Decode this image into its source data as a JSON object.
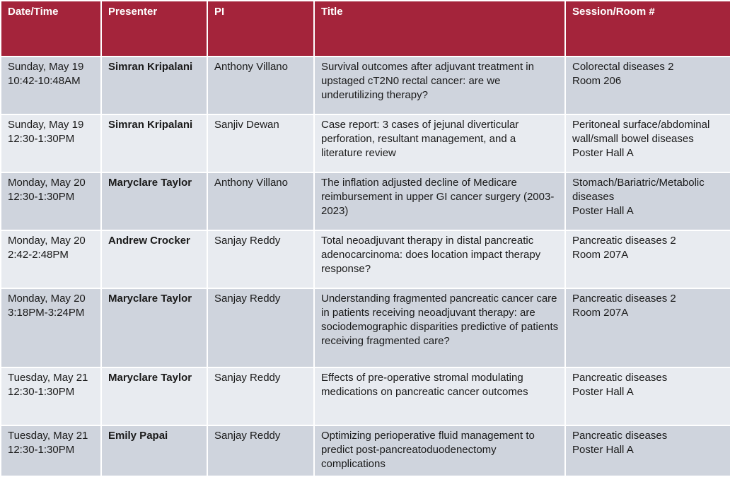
{
  "colors": {
    "header_bg": "#a4243b",
    "row_dark": "#cfd4dd",
    "row_light": "#e8ebf0"
  },
  "table": {
    "headers": [
      "Date/Time",
      "Presenter",
      "PI",
      "Title",
      "Session/Room #"
    ],
    "rows": [
      {
        "date": "Sunday, May 19",
        "time": "10:42-10:48AM",
        "presenter": "Simran Kripalani",
        "pi": "Anthony Villano",
        "title": "Survival outcomes after adjuvant treatment in upstaged cT2N0 rectal cancer: are we underutilizing therapy?",
        "session": "Colorectal diseases 2",
        "room": "Room 206"
      },
      {
        "date": "Sunday, May 19",
        "time": "12:30-1:30PM",
        "presenter": "Simran Kripalani",
        "pi": "Sanjiv Dewan",
        "title": "Case report: 3 cases of jejunal diverticular perforation, resultant management, and a literature review",
        "session": "Peritoneal surface/abdominal wall/small bowel diseases",
        "room": "Poster Hall A"
      },
      {
        "date": "Monday, May 20",
        "time": "12:30-1:30PM",
        "presenter": "Maryclare Taylor",
        "pi": "Anthony Villano",
        "title": "The inflation adjusted decline of Medicare reimbursement in upper GI cancer surgery (2003-2023)",
        "session": "Stomach/Bariatric/Metabolic diseases",
        "room": "Poster Hall A"
      },
      {
        "date": "Monday, May 20",
        "time": "2:42-2:48PM",
        "presenter": "Andrew Crocker",
        "pi": "Sanjay Reddy",
        "title": "Total neoadjuvant therapy in distal pancreatic adenocarcinoma: does location impact therapy response?",
        "session": "Pancreatic diseases 2",
        "room": "Room 207A"
      },
      {
        "date": "Monday, May 20",
        "time": "3:18PM-3:24PM",
        "presenter": "Maryclare Taylor",
        "pi": "Sanjay Reddy",
        "title": "Understanding fragmented pancreatic cancer care in patients receiving neoadjuvant therapy: are sociodemographic disparities predictive of patients receiving fragmented care?",
        "session": "Pancreatic diseases 2",
        "room": "Room 207A"
      },
      {
        "date": "Tuesday, May 21",
        "time": "12:30-1:30PM",
        "presenter": "Maryclare Taylor",
        "pi": "Sanjay Reddy",
        "title": "Effects of pre-operative stromal modulating medications on pancreatic cancer outcomes",
        "session": "Pancreatic diseases",
        "room": "Poster Hall A"
      },
      {
        "date": "Tuesday, May 21",
        "time": "12:30-1:30PM",
        "presenter": "Emily Papai",
        "pi": "Sanjay Reddy",
        "title": "Optimizing perioperative fluid management to predict post-pancreatoduodenectomy complications",
        "session": "Pancreatic diseases",
        "room": "Poster Hall A"
      }
    ]
  }
}
